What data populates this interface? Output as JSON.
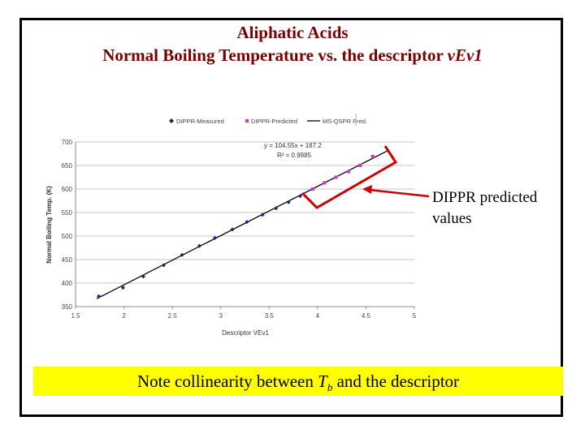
{
  "header": {
    "title_line1": "Aliphatic Acids",
    "title_line2_prefix": "Normal Boiling Temperature vs. the descriptor ",
    "title_line2_italic": "vEv1"
  },
  "callout": {
    "line1": "DIPPR predicted",
    "line2": "values",
    "arrow_color": "#cc0000"
  },
  "note": {
    "prefix": "Note collinearity between ",
    "symbol": "T",
    "subscript": "b",
    "suffix": " and the descriptor",
    "background": "#ffff00"
  },
  "chart_data": {
    "type": "scatter",
    "xlabel": "Descriptor VEv1",
    "ylabel": "Normal Boiling Temp. (K)",
    "xlim": [
      1.5,
      5
    ],
    "ylim": [
      350,
      700
    ],
    "xticks": [
      "1.5",
      "2",
      "2.5",
      "3",
      "3.5",
      "4",
      "4.5",
      "5"
    ],
    "yticks": [
      "350",
      "400",
      "450",
      "500",
      "550",
      "600",
      "650",
      "700"
    ],
    "grid": "horizontal",
    "legend_position": "top",
    "equation": "y = 104.55x + 187.2",
    "r_squared": "R² = 0.9985",
    "series": [
      {
        "name": "DIPPR-Measured",
        "marker": "diamond",
        "color": "#1f1f7a",
        "x": [
          1.74,
          1.99,
          2.2,
          2.41,
          2.6,
          2.78,
          2.94,
          3.12,
          3.27,
          3.43,
          3.57,
          3.7,
          3.82
        ],
        "y": [
          372,
          390,
          414,
          438,
          460,
          479,
          496,
          514,
          530,
          545,
          559,
          572,
          585
        ]
      },
      {
        "name": "DIPPR-Predicted",
        "marker": "square",
        "color": "#cc33cc",
        "x": [
          3.95,
          4.07,
          4.19,
          4.32,
          4.44,
          4.57
        ],
        "y": [
          600,
          613,
          625,
          637,
          650,
          669
        ]
      },
      {
        "name": "MS-QSPR Pred.",
        "marker": "line",
        "color": "#000000",
        "x": [
          1.72,
          4.72
        ],
        "y": [
          367,
          681
        ]
      }
    ]
  }
}
